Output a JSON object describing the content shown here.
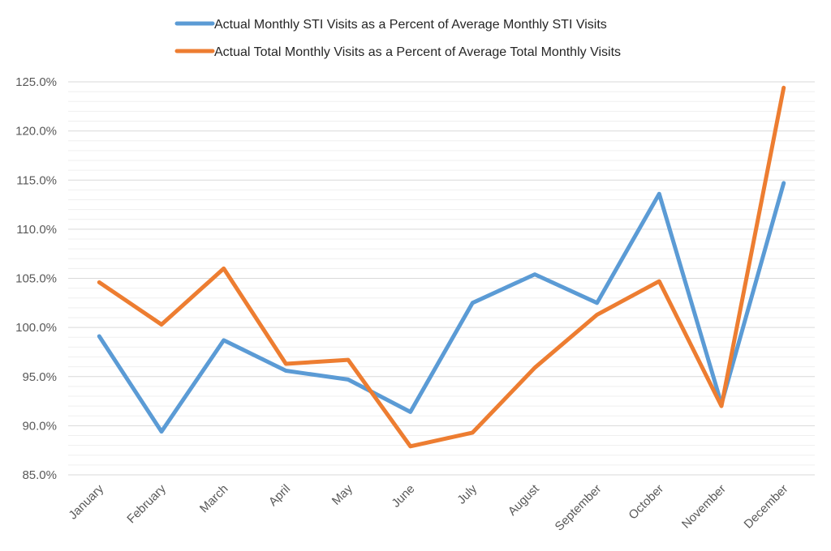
{
  "chart_data": {
    "type": "line",
    "categories": [
      "January",
      "February",
      "March",
      "April",
      "May",
      "June",
      "July",
      "August",
      "September",
      "October",
      "November",
      "December"
    ],
    "series": [
      {
        "name": "Actual Monthly STI Visits as a Percent of Average Monthly STI Visits",
        "color": "#5b9bd5",
        "values": [
          99.1,
          89.4,
          98.7,
          95.6,
          94.7,
          91.4,
          102.5,
          105.4,
          102.5,
          113.6,
          92.2,
          114.7
        ]
      },
      {
        "name": "Actual Total Monthly Visits as a Percent of Average Total Monthly Visits",
        "color": "#ed7d31",
        "values": [
          104.6,
          100.3,
          106.0,
          96.3,
          96.7,
          87.9,
          89.3,
          95.9,
          101.3,
          104.7,
          92.0,
          124.4
        ]
      }
    ],
    "yticks": [
      "85.0%",
      "90.0%",
      "95.0%",
      "100.0%",
      "105.0%",
      "110.0%",
      "115.0%",
      "120.0%",
      "125.0%"
    ],
    "ylim": [
      85,
      125
    ],
    "ytick_values": [
      85,
      90,
      95,
      100,
      105,
      110,
      115,
      120,
      125
    ],
    "grid": true,
    "legend_position": "top"
  }
}
